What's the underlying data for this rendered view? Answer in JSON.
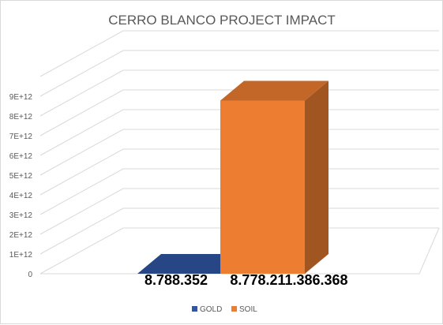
{
  "chart_data": {
    "type": "bar",
    "title": "CERRO BLANCO PROJECT IMPACT",
    "xlabel": "",
    "ylabel": "",
    "ylim": [
      0,
      9000000000000
    ],
    "y_ticks": [
      "0",
      "1E+12",
      "2E+12",
      "3E+12",
      "4E+12",
      "5E+12",
      "6E+12",
      "7E+12",
      "8E+12",
      "9E+12"
    ],
    "series": [
      {
        "name": "GOLD",
        "value": 8788352,
        "data_label": "8.788.352",
        "color": "#2f55a4"
      },
      {
        "name": "SOIL",
        "value": 8778211386368,
        "data_label": "8.778.211.386.368",
        "color": "#ed7d31"
      }
    ],
    "grid": true,
    "legend": "bottom",
    "style": "3d-column"
  }
}
